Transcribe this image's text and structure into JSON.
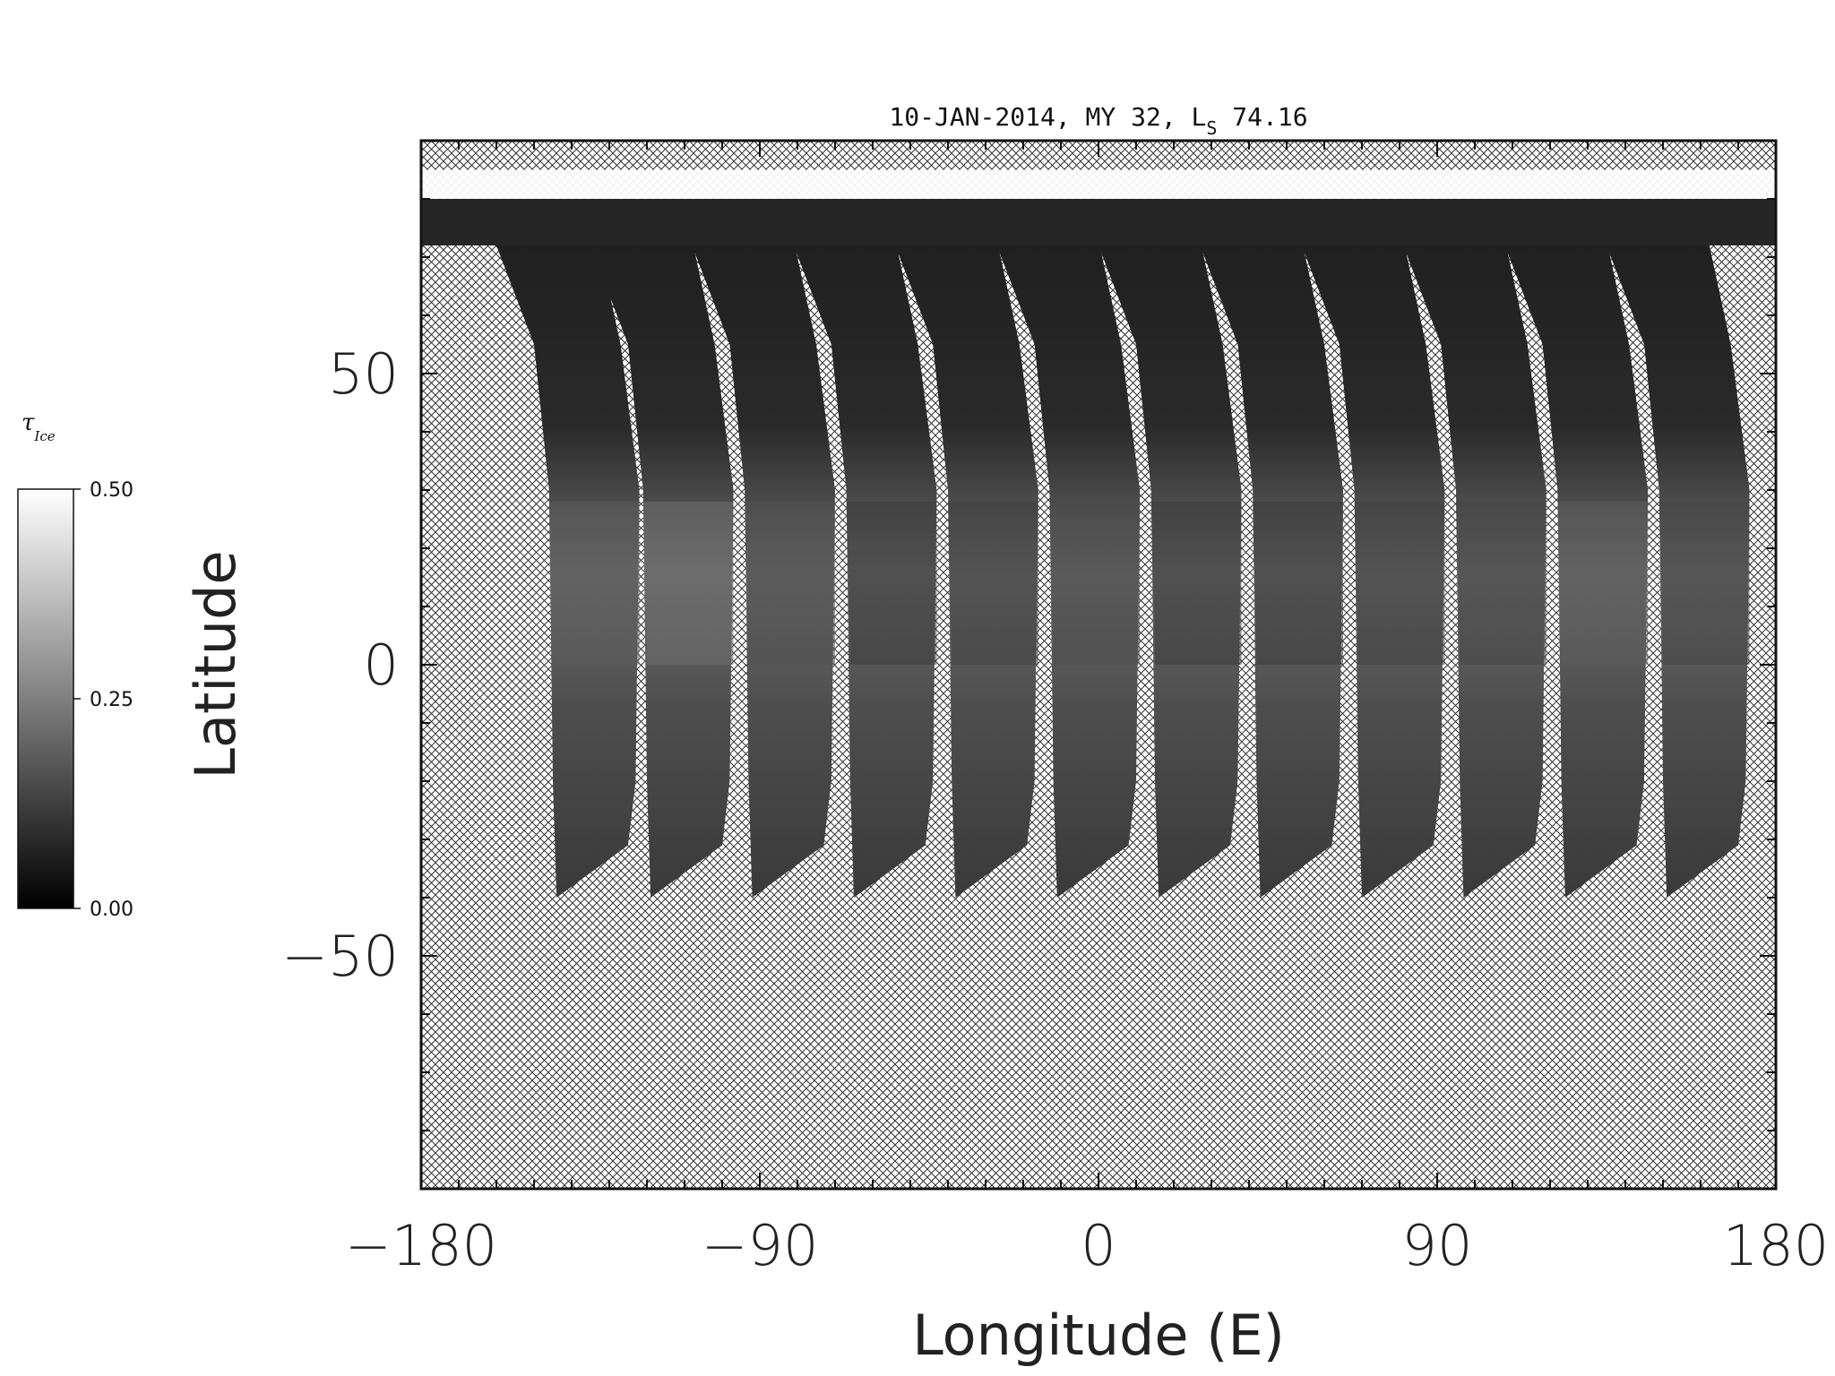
{
  "chart_data": {
    "type": "heatmap",
    "title": {
      "prefix": "10-JAN-2014, MY 32,  L",
      "subscript": "S",
      "suffix": " 74.16"
    },
    "xlabel": "Longitude (E)",
    "ylabel": "Latitude",
    "xlim": [
      -180,
      180
    ],
    "ylim": [
      -90,
      90
    ],
    "x_ticks": [
      -180,
      -90,
      0,
      90,
      180
    ],
    "x_tick_labels": [
      "−180",
      "−90",
      "0",
      "90",
      "180"
    ],
    "y_ticks": [
      -50,
      0,
      50
    ],
    "y_tick_labels": [
      "−50",
      "0",
      "50"
    ],
    "x_minor_step": 10,
    "y_minor_step": 10,
    "no_data_pattern": "crosshatch",
    "colorbar": {
      "label_symbol": "τ",
      "label_subscript": "Ice",
      "min": 0.0,
      "max": 0.5,
      "ticks": [
        0.0,
        0.25,
        0.5
      ],
      "tick_labels": [
        "0.00",
        "0.25",
        "0.50"
      ],
      "colormap": "grayscale"
    },
    "orbit_swaths": [
      {
        "lon_center": -134,
        "lat_min": -40,
        "tau_mid": 0.18
      },
      {
        "lon_center": -109,
        "lat_min": -40,
        "tau_mid": 0.22
      },
      {
        "lon_center": -82,
        "lat_min": -40,
        "tau_mid": 0.16
      },
      {
        "lon_center": -55,
        "lat_min": -40,
        "tau_mid": 0.12
      },
      {
        "lon_center": -28,
        "lat_min": -40,
        "tau_mid": 0.13
      },
      {
        "lon_center": -1,
        "lat_min": -40,
        "tau_mid": 0.15
      },
      {
        "lon_center": 26,
        "lat_min": -40,
        "tau_mid": 0.12
      },
      {
        "lon_center": 53,
        "lat_min": -40,
        "tau_mid": 0.12
      },
      {
        "lon_center": 80,
        "lat_min": -40,
        "tau_mid": 0.13
      },
      {
        "lon_center": 107,
        "lat_min": -40,
        "tau_mid": 0.14
      },
      {
        "lon_center": 134,
        "lat_min": -40,
        "tau_mid": 0.18
      },
      {
        "lon_center": 161,
        "lat_min": -40,
        "tau_mid": 0.14
      }
    ],
    "north_polar_cap": {
      "lat_min": 84,
      "lat_max": 85,
      "tau": 0.5
    }
  }
}
